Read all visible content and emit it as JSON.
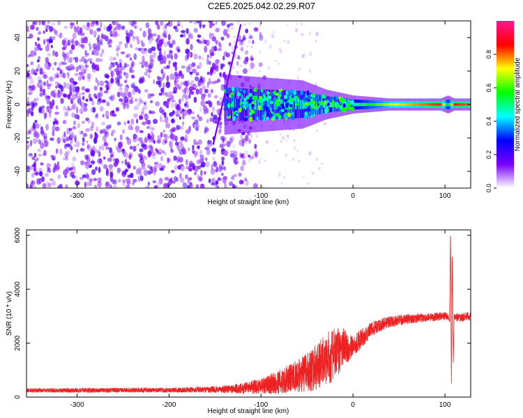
{
  "title": "C2E5.2025.042.02.29.R07",
  "chart_data": [
    {
      "type": "heatmap",
      "xlabel": "Height of straight line (km)",
      "ylabel": "Frequency (Hz)",
      "xlim": [
        -355,
        128
      ],
      "ylim": [
        -50,
        50
      ],
      "xticks": [
        -300,
        -200,
        -100,
        0,
        100
      ],
      "yticks": [
        -40,
        -20,
        0,
        20,
        40
      ],
      "colorbar": {
        "label": "Normalized spectral amplitude",
        "range": [
          0,
          1
        ],
        "ticks": [
          0.0,
          0.2,
          0.4,
          0.6,
          0.8
        ],
        "colormap": [
          "#ffffff",
          "#7700ff",
          "#0000ff",
          "#00ffff",
          "#00ff00",
          "#ffff00",
          "#ff0000",
          "#ff1493"
        ]
      },
      "features": {
        "noise_region_x": [
          -355,
          -130
        ],
        "diagonal_line": {
          "x": [
            -152,
            -122
          ],
          "y": [
            -24,
            48
          ]
        },
        "signal_band": {
          "x": [
            -140,
            -55,
            -30,
            0,
            40,
            95,
            103,
            110,
            128
          ],
          "amplitude": [
            0.3,
            0.45,
            0.55,
            0.45,
            0.7,
            0.85,
            0.5,
            0.85,
            0.8
          ],
          "width_hz": [
            10,
            8,
            5,
            3,
            2,
            2,
            3,
            2,
            2
          ]
        }
      }
    },
    {
      "type": "line",
      "xlabel": "Height of straight line (km)",
      "ylabel": "SNR (10 * v/v)",
      "xlim": [
        -355,
        128
      ],
      "ylim": [
        0,
        6200
      ],
      "xticks": [
        -300,
        -200,
        -100,
        0,
        100
      ],
      "yticks": [
        0,
        2000,
        4000,
        6000
      ],
      "series": [
        {
          "color": "#ee2222",
          "x": [
            -355,
            -300,
            -250,
            -200,
            -150,
            -120,
            -100,
            -80,
            -60,
            -45,
            -35,
            -25,
            -15,
            -10,
            -5,
            0,
            10,
            20,
            30,
            40,
            60,
            80,
            100,
            103,
            105,
            106,
            107,
            108,
            109,
            110,
            115,
            128
          ],
          "y": [
            250,
            250,
            260,
            260,
            280,
            320,
            420,
            560,
            780,
            1000,
            1250,
            1500,
            1700,
            1900,
            1800,
            1900,
            2200,
            2500,
            2700,
            2800,
            2900,
            2950,
            3000,
            3000,
            2800,
            6200,
            500,
            5400,
            1200,
            3000,
            2950,
            3000
          ],
          "noise_amplitude": [
            80,
            90,
            90,
            90,
            120,
            200,
            300,
            450,
            600,
            800,
            900,
            1000,
            900,
            700,
            500,
            400,
            350,
            280,
            250,
            220,
            180,
            160,
            160,
            150,
            0,
            0,
            0,
            0,
            0,
            150,
            160,
            170
          ]
        }
      ]
    }
  ]
}
